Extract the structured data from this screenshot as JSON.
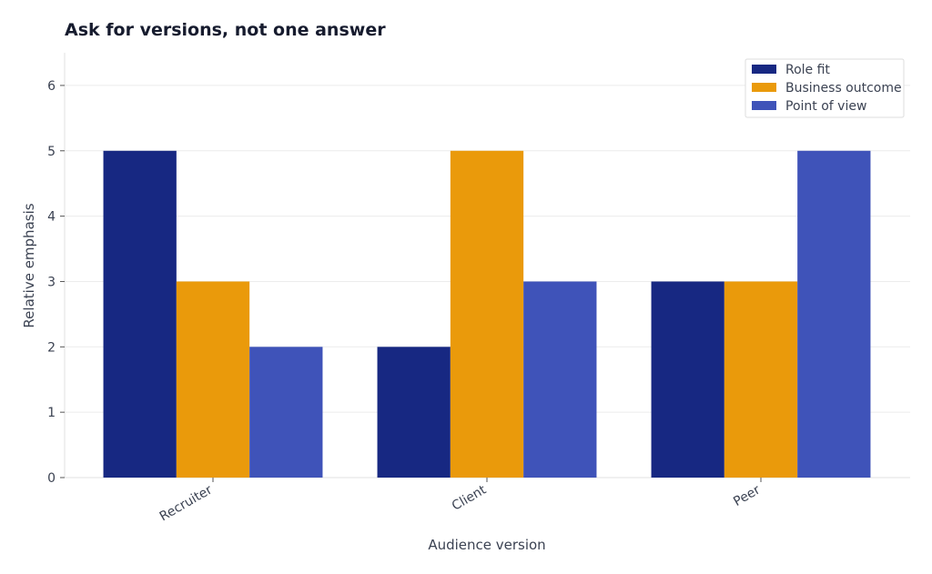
{
  "chart_data": {
    "type": "bar",
    "title": "Ask for versions, not one answer",
    "xlabel": "Audience version",
    "ylabel": "Relative emphasis",
    "categories": [
      "Recruiter",
      "Client",
      "Peer"
    ],
    "series": [
      {
        "name": "Role fit",
        "values": [
          5,
          2,
          3
        ],
        "color": "#172882"
      },
      {
        "name": "Business outcome",
        "values": [
          3,
          5,
          3
        ],
        "color": "#ea9a0b"
      },
      {
        "name": "Point of view",
        "values": [
          2,
          3,
          5
        ],
        "color": "#3f53b9"
      }
    ],
    "ylim": [
      0,
      6.5
    ],
    "yticks": [
      0,
      1,
      2,
      3,
      4,
      5,
      6
    ],
    "grid": true,
    "legend_position": "top-right"
  }
}
